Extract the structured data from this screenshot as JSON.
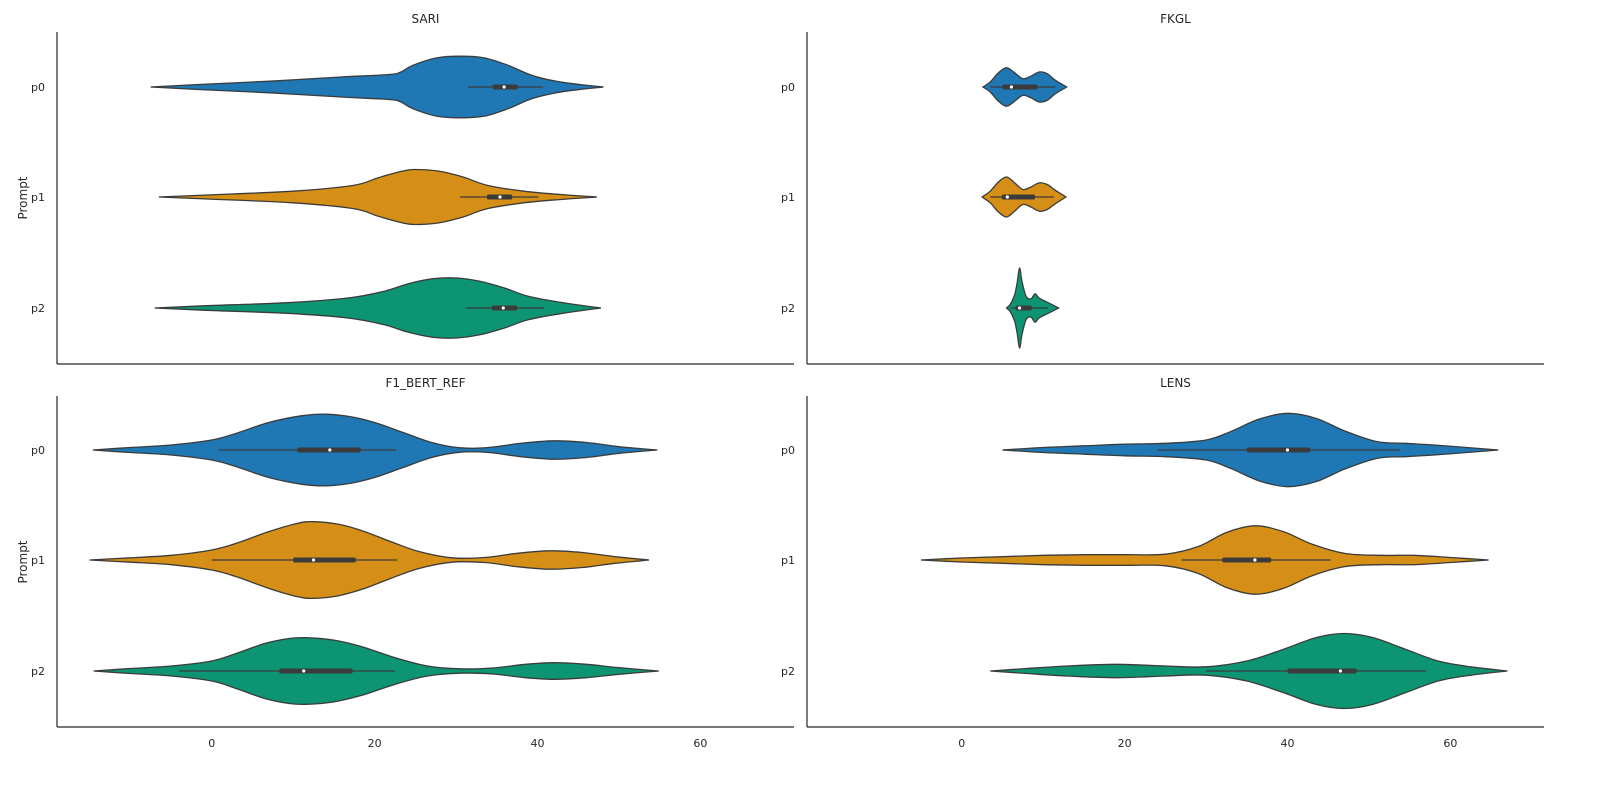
{
  "figure": {
    "y_axis_label": "Prompt"
  },
  "chart_data": [
    {
      "type": "violin",
      "title": "SARI",
      "ylabel": "Prompt",
      "xlabel": "",
      "categories": [
        "p0",
        "p1",
        "p2"
      ],
      "xlim": [
        -19,
        71.5
      ],
      "xticks": [],
      "xticklabels": [],
      "series": [
        {
          "category": "p0",
          "color": "#1f77b4",
          "min": -7.5,
          "q1": 34.5,
          "median": 35.9,
          "q3": 37.6,
          "max": 48.1,
          "whisker_low": 31.5,
          "whisker_high": 40.7,
          "density": [
            [
              -7.5,
              0.2
            ],
            [
              -5.5,
              1.5
            ],
            [
              -2.5,
              3.5
            ],
            [
              0.5,
              6.0
            ],
            [
              2.5,
              7.5
            ],
            [
              3.0,
              9.0
            ],
            [
              3.5,
              13.0
            ],
            [
              4.5,
              17.5
            ],
            [
              5.5,
              18.5
            ],
            [
              6.5,
              17.5
            ],
            [
              7.5,
              13.0
            ],
            [
              8.5,
              7.0
            ],
            [
              9.5,
              3.5
            ],
            [
              10.5,
              1.5
            ],
            [
              11.5,
              0.3
            ]
          ]
        },
        {
          "category": "p1",
          "color": "#d68f16",
          "min": -6.5,
          "q1": 33.8,
          "median": 35.4,
          "q3": 36.9,
          "max": 47.3,
          "whisker_low": 30.5,
          "whisker_high": 40.1,
          "density": [
            [
              -6.5,
              0.2
            ],
            [
              -4.5,
              1.2
            ],
            [
              -1.0,
              3.5
            ],
            [
              1.5,
              7.0
            ],
            [
              2.5,
              11.5
            ],
            [
              3.5,
              15.5
            ],
            [
              4.0,
              16.5
            ],
            [
              5.0,
              15.5
            ],
            [
              6.0,
              12.0
            ],
            [
              7.0,
              7.0
            ],
            [
              8.5,
              3.5
            ],
            [
              10.0,
              1.5
            ],
            [
              11.5,
              0.3
            ]
          ]
        },
        {
          "category": "p2",
          "color": "#0d9573",
          "min": -7.0,
          "q1": 34.4,
          "median": 35.8,
          "q3": 37.5,
          "max": 47.8,
          "whisker_low": 31.2,
          "whisker_high": 40.8,
          "density": [
            [
              -7.0,
              0.2
            ],
            [
              -5.0,
              1.3
            ],
            [
              -1.5,
              3.2
            ],
            [
              1.0,
              6.0
            ],
            [
              2.5,
              10.0
            ],
            [
              3.5,
              14.5
            ],
            [
              4.5,
              17.5
            ],
            [
              5.5,
              18.0
            ],
            [
              6.5,
              16.0
            ],
            [
              7.5,
              12.0
            ],
            [
              8.5,
              7.0
            ],
            [
              10.0,
              3.0
            ],
            [
              11.5,
              0.3
            ]
          ]
        }
      ]
    },
    {
      "type": "violin",
      "title": "FKGL",
      "ylabel": "",
      "xlabel": "",
      "categories": [
        "p0",
        "p1",
        "p2"
      ],
      "xlim": [
        -19,
        71.5
      ],
      "xticks": [],
      "xticklabels": [],
      "series": [
        {
          "category": "p0",
          "color": "#1f77b4",
          "min": 2.6,
          "q1": 5.0,
          "median": 6.1,
          "q3": 9.3,
          "max": 12.9,
          "whisker_low": 3.5,
          "whisker_high": 11.5,
          "density": [
            [
              2.6,
              0.3
            ],
            [
              3.5,
              3.0
            ],
            [
              4.5,
              8.5
            ],
            [
              5.5,
              11.5
            ],
            [
              6.5,
              8.5
            ],
            [
              7.5,
              5.0
            ],
            [
              8.5,
              6.5
            ],
            [
              9.5,
              9.0
            ],
            [
              10.5,
              8.0
            ],
            [
              11.5,
              4.0
            ],
            [
              12.9,
              0.3
            ]
          ]
        },
        {
          "category": "p1",
          "color": "#d68f16",
          "min": 2.5,
          "q1": 4.9,
          "median": 5.6,
          "q3": 9.0,
          "max": 12.8,
          "whisker_low": 3.5,
          "whisker_high": 11.3,
          "density": [
            [
              2.5,
              0.3
            ],
            [
              3.5,
              3.5
            ],
            [
              4.5,
              9.0
            ],
            [
              5.5,
              12.0
            ],
            [
              6.5,
              8.5
            ],
            [
              7.5,
              4.5
            ],
            [
              8.5,
              6.0
            ],
            [
              9.5,
              8.5
            ],
            [
              10.5,
              7.5
            ],
            [
              11.5,
              4.0
            ],
            [
              12.8,
              0.3
            ]
          ]
        },
        {
          "category": "p2",
          "color": "#0d9573",
          "min": 5.5,
          "q1": 6.6,
          "median": 7.1,
          "q3": 8.6,
          "max": 11.9,
          "whisker_low": 6.0,
          "whisker_high": 10.6,
          "density": [
            [
              5.5,
              0.3
            ],
            [
              6.0,
              2.5
            ],
            [
              6.5,
              8.0
            ],
            [
              6.8,
              15.0
            ],
            [
              7.1,
              24.0
            ],
            [
              7.4,
              16.0
            ],
            [
              7.9,
              7.0
            ],
            [
              8.5,
              5.5
            ],
            [
              9.0,
              8.5
            ],
            [
              9.5,
              6.0
            ],
            [
              10.5,
              3.5
            ],
            [
              11.9,
              0.3
            ]
          ]
        }
      ]
    },
    {
      "type": "violin",
      "title": "F1_BERT_REF",
      "ylabel": "Prompt",
      "xlabel": "",
      "categories": [
        "p0",
        "p1",
        "p2"
      ],
      "xlim": [
        -19,
        71.5
      ],
      "xticks": [
        0,
        20,
        40,
        60
      ],
      "xticklabels": [
        "0",
        "20",
        "40",
        "60"
      ],
      "series": [
        {
          "category": "p0",
          "color": "#1f77b4",
          "min": -14.6,
          "q1": 10.5,
          "median": 14.5,
          "q3": 18.3,
          "max": 54.7,
          "whisker_low": 0.8,
          "whisker_high": 22.6,
          "density": [
            [
              -14.6,
              0.3
            ],
            [
              -10.0,
              1.5
            ],
            [
              -5.0,
              3.0
            ],
            [
              0.0,
              6.0
            ],
            [
              3.0,
              10.0
            ],
            [
              7.0,
              16.5
            ],
            [
              11.0,
              20.5
            ],
            [
              14.0,
              21.5
            ],
            [
              17.0,
              20.0
            ],
            [
              20.0,
              16.5
            ],
            [
              23.5,
              10.5
            ],
            [
              27.0,
              4.5
            ],
            [
              30.5,
              1.3
            ],
            [
              34.0,
              1.5
            ],
            [
              38.0,
              4.0
            ],
            [
              42.0,
              5.5
            ],
            [
              46.0,
              4.5
            ],
            [
              50.0,
              2.0
            ],
            [
              54.7,
              0.3
            ]
          ]
        },
        {
          "category": "p1",
          "color": "#d68f16",
          "min": -15.0,
          "q1": 10.0,
          "median": 12.5,
          "q3": 17.7,
          "max": 53.7,
          "whisker_low": 0.0,
          "whisker_high": 22.8,
          "density": [
            [
              -15.0,
              0.3
            ],
            [
              -10.0,
              1.3
            ],
            [
              -5.0,
              2.8
            ],
            [
              0.0,
              6.0
            ],
            [
              3.0,
              10.0
            ],
            [
              7.0,
              17.0
            ],
            [
              10.5,
              22.0
            ],
            [
              12.5,
              23.0
            ],
            [
              15.5,
              21.5
            ],
            [
              18.5,
              17.5
            ],
            [
              22.0,
              11.0
            ],
            [
              25.5,
              5.0
            ],
            [
              29.5,
              1.3
            ],
            [
              33.5,
              1.5
            ],
            [
              37.5,
              4.0
            ],
            [
              41.5,
              5.5
            ],
            [
              45.5,
              4.5
            ],
            [
              49.5,
              2.0
            ],
            [
              53.7,
              0.3
            ]
          ]
        },
        {
          "category": "p2",
          "color": "#0d9573",
          "min": -14.5,
          "q1": 8.3,
          "median": 11.3,
          "q3": 17.3,
          "max": 54.9,
          "whisker_low": -4.0,
          "whisker_high": 22.5,
          "density": [
            [
              -14.5,
              0.3
            ],
            [
              -10.0,
              1.5
            ],
            [
              -5.0,
              3.0
            ],
            [
              0.0,
              6.0
            ],
            [
              3.0,
              10.5
            ],
            [
              6.5,
              16.5
            ],
            [
              9.5,
              19.5
            ],
            [
              11.5,
              20.0
            ],
            [
              15.0,
              18.5
            ],
            [
              18.5,
              14.5
            ],
            [
              22.5,
              8.0
            ],
            [
              26.5,
              3.0
            ],
            [
              30.5,
              1.3
            ],
            [
              34.5,
              1.8
            ],
            [
              38.5,
              4.0
            ],
            [
              42.0,
              5.0
            ],
            [
              46.0,
              4.0
            ],
            [
              50.0,
              2.0
            ],
            [
              54.9,
              0.3
            ]
          ]
        }
      ]
    },
    {
      "type": "violin",
      "title": "LENS",
      "ylabel": "",
      "xlabel": "",
      "categories": [
        "p0",
        "p1",
        "p2"
      ],
      "xlim": [
        -19,
        71.5
      ],
      "xticks": [
        0,
        20,
        40,
        60
      ],
      "xticklabels": [
        "0",
        "20",
        "40",
        "60"
      ],
      "series": [
        {
          "category": "p0",
          "color": "#1f77b4",
          "min": 5.0,
          "q1": 35.0,
          "median": 40.0,
          "q3": 42.8,
          "max": 65.9,
          "whisker_low": 24.0,
          "whisker_high": 53.8,
          "density": [
            [
              5.0,
              0.3
            ],
            [
              10.0,
              1.5
            ],
            [
              15.0,
              2.5
            ],
            [
              20.0,
              3.5
            ],
            [
              25.0,
              4.0
            ],
            [
              30.0,
              6.0
            ],
            [
              33.0,
              11.0
            ],
            [
              36.5,
              18.5
            ],
            [
              40.0,
              22.0
            ],
            [
              43.5,
              19.0
            ],
            [
              47.0,
              11.5
            ],
            [
              51.0,
              5.0
            ],
            [
              54.5,
              4.0
            ],
            [
              58.0,
              3.0
            ],
            [
              62.0,
              1.5
            ],
            [
              65.9,
              0.3
            ]
          ]
        },
        {
          "category": "p1",
          "color": "#d68f16",
          "min": -5.0,
          "q1": 32.0,
          "median": 36.0,
          "q3": 38.0,
          "max": 64.7,
          "whisker_low": 27.0,
          "whisker_high": 45.3,
          "density": [
            [
              -5.0,
              0.3
            ],
            [
              0.0,
              1.2
            ],
            [
              5.0,
              2.0
            ],
            [
              10.0,
              2.8
            ],
            [
              15.0,
              3.2
            ],
            [
              20.0,
              3.2
            ],
            [
              25.0,
              3.5
            ],
            [
              29.0,
              8.0
            ],
            [
              32.5,
              16.5
            ],
            [
              36.0,
              20.5
            ],
            [
              39.5,
              17.0
            ],
            [
              43.0,
              9.5
            ],
            [
              47.0,
              4.0
            ],
            [
              51.5,
              2.8
            ],
            [
              55.5,
              2.8
            ],
            [
              60.0,
              1.5
            ],
            [
              64.7,
              0.3
            ]
          ]
        },
        {
          "category": "p2",
          "color": "#0d9573",
          "min": 3.5,
          "q1": 40.0,
          "median": 46.5,
          "q3": 48.5,
          "max": 67.0,
          "whisker_low": 30.0,
          "whisker_high": 57.0,
          "density": [
            [
              3.5,
              0.3
            ],
            [
              8.0,
              1.5
            ],
            [
              13.0,
              3.0
            ],
            [
              19.0,
              4.0
            ],
            [
              25.0,
              3.0
            ],
            [
              30.0,
              2.5
            ],
            [
              35.0,
              6.0
            ],
            [
              39.5,
              13.0
            ],
            [
              43.5,
              20.0
            ],
            [
              47.0,
              22.5
            ],
            [
              50.5,
              20.0
            ],
            [
              54.5,
              13.0
            ],
            [
              58.5,
              6.0
            ],
            [
              62.5,
              2.5
            ],
            [
              67.0,
              0.3
            ]
          ]
        }
      ]
    }
  ]
}
